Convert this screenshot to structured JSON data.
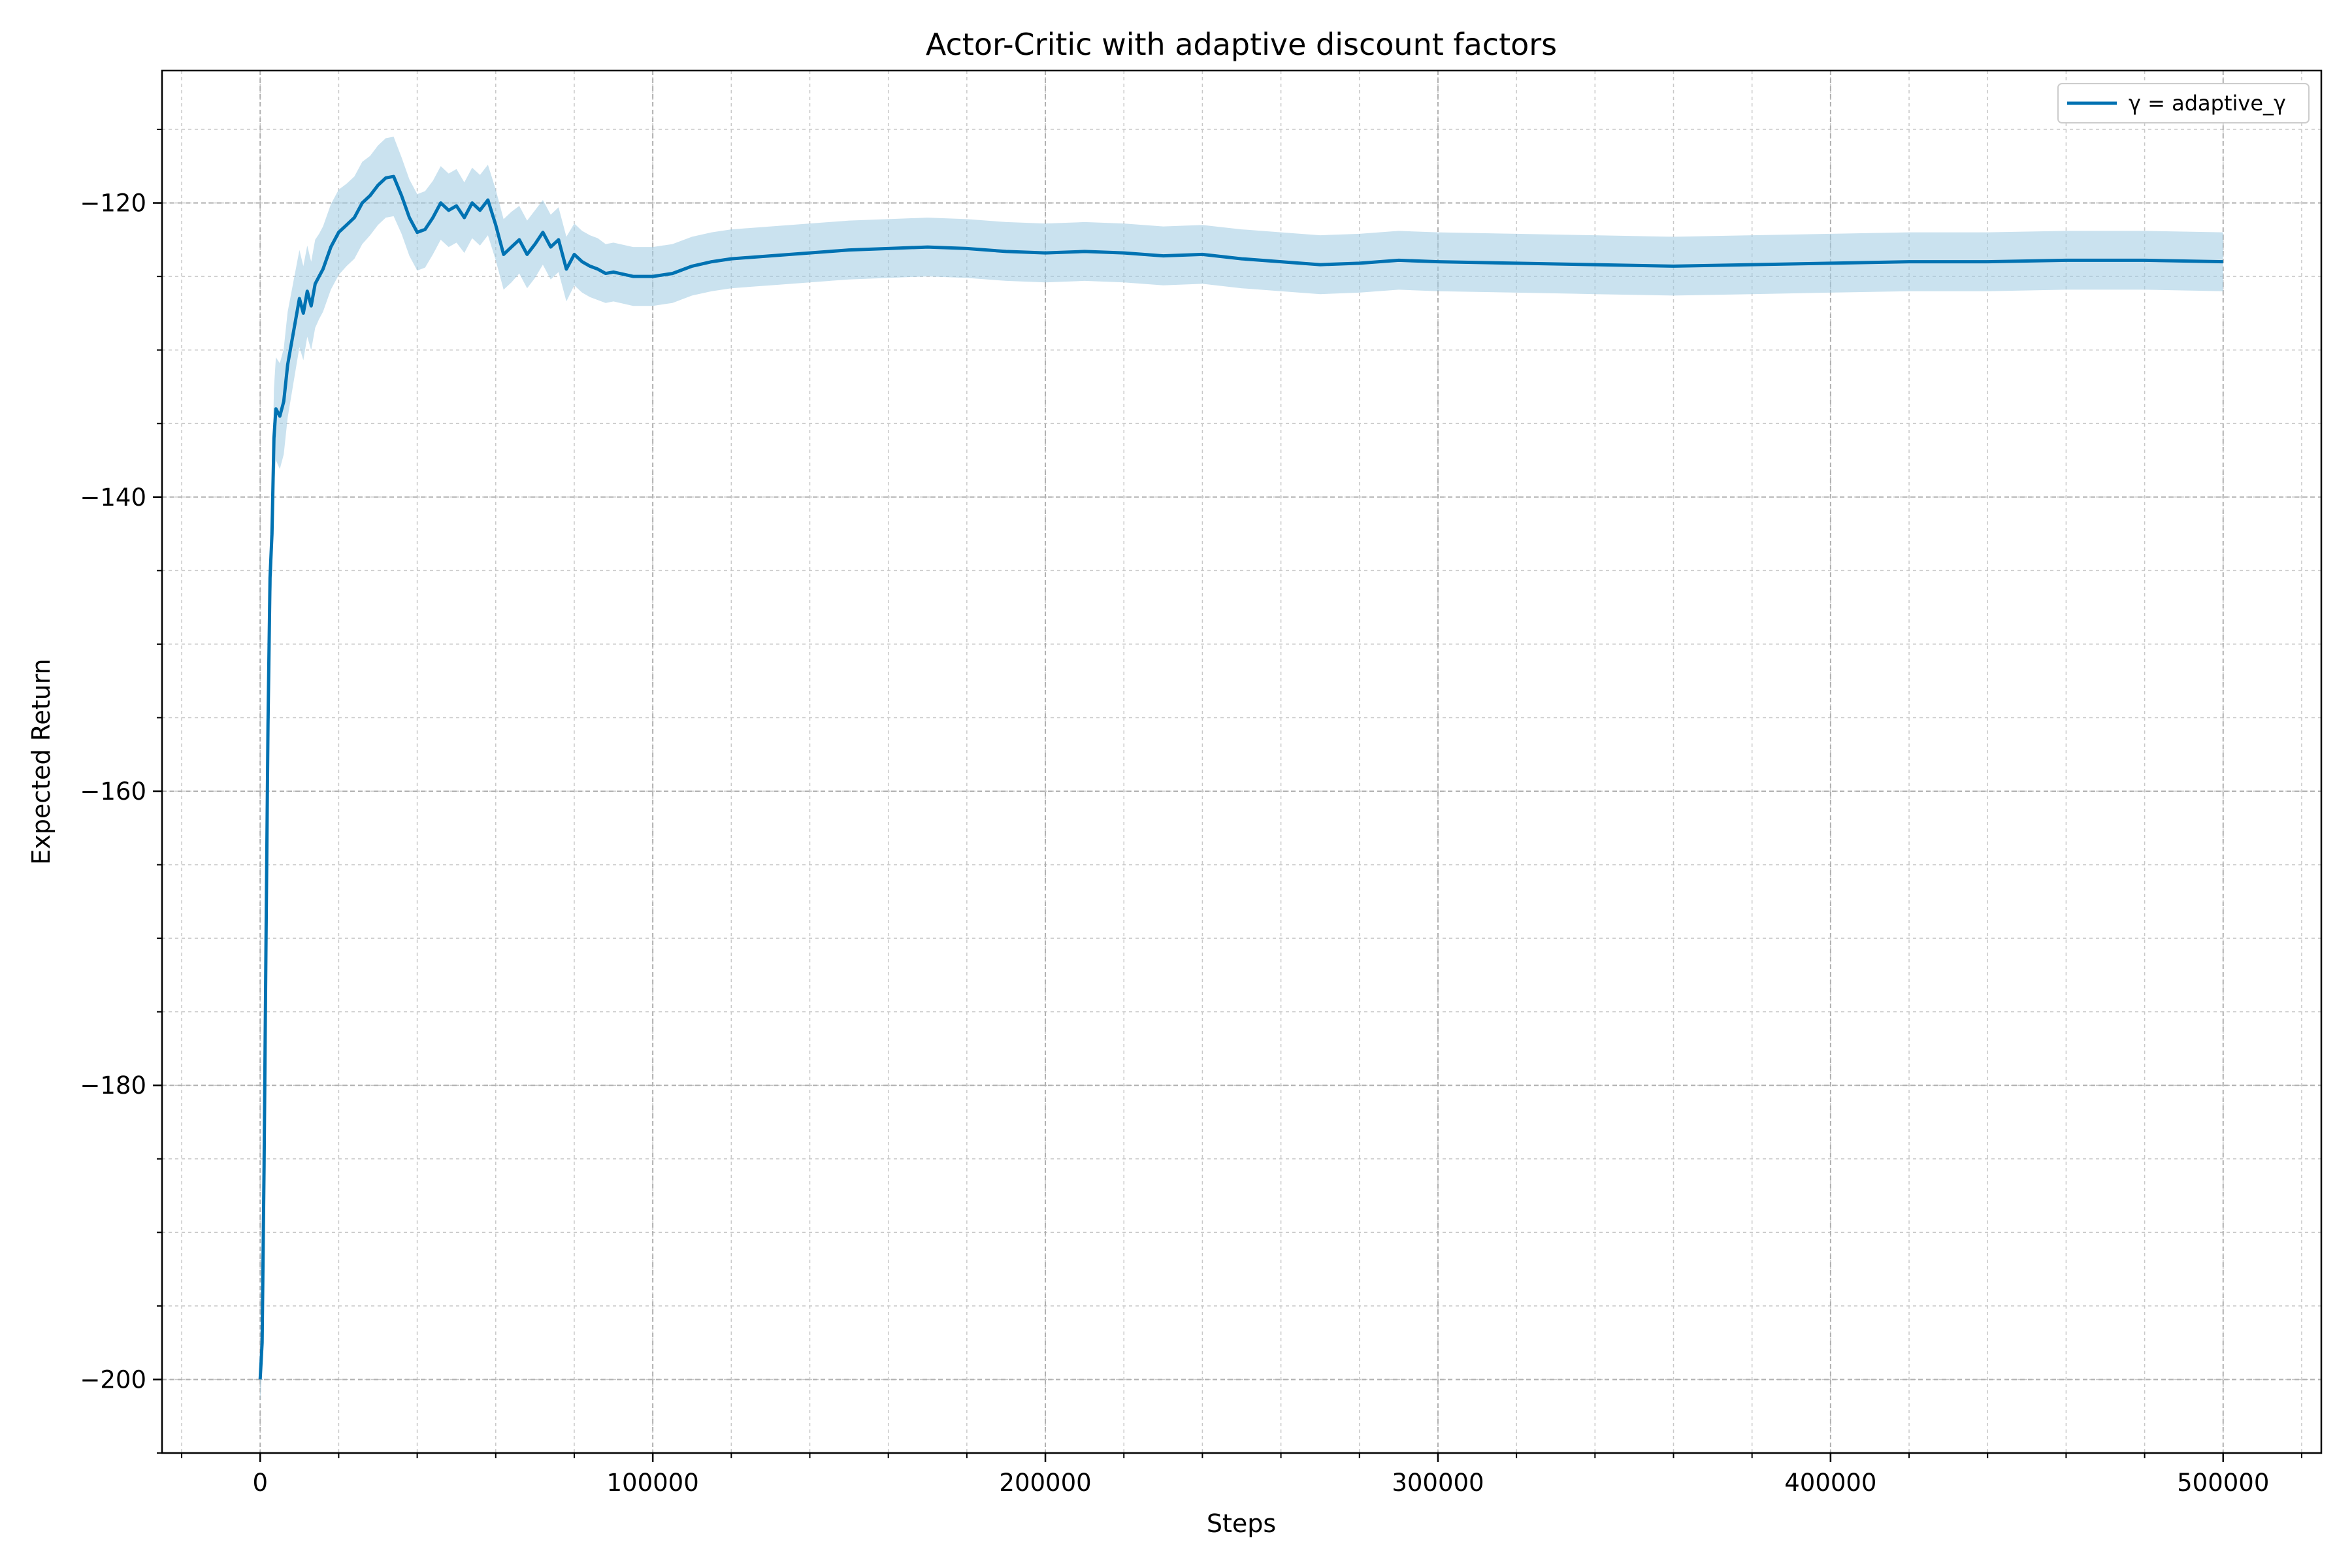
{
  "chart_data": {
    "type": "line",
    "title": "Actor-Critic with adaptive discount factors",
    "xlabel": "Steps",
    "ylabel": "Expected Return",
    "xlim": [
      -25000,
      525000
    ],
    "ylim": [
      -205,
      -111
    ],
    "xticks": [
      0,
      100000,
      200000,
      300000,
      400000,
      500000
    ],
    "yticks": [
      -200,
      -180,
      -160,
      -140,
      -120
    ],
    "x_minor_step": 20000,
    "y_minor_step": 5,
    "grid": true,
    "legend_position": "top-right",
    "colors": {
      "line": "#0072B2",
      "band": "#9ECAE1"
    },
    "series": [
      {
        "name": "γ = adaptive_γ",
        "x": [
          0,
          500,
          1000,
          1500,
          2000,
          2500,
          3000,
          3500,
          4000,
          5000,
          6000,
          7000,
          8000,
          9000,
          10000,
          11000,
          12000,
          13000,
          14000,
          15000,
          16000,
          18000,
          20000,
          22000,
          24000,
          26000,
          28000,
          30000,
          32000,
          34000,
          36000,
          38000,
          40000,
          42000,
          44000,
          46000,
          48000,
          50000,
          52000,
          54000,
          56000,
          58000,
          60000,
          62000,
          64000,
          66000,
          68000,
          70000,
          72000,
          74000,
          76000,
          78000,
          80000,
          82000,
          84000,
          86000,
          88000,
          90000,
          95000,
          100000,
          105000,
          110000,
          115000,
          120000,
          130000,
          140000,
          150000,
          160000,
          170000,
          180000,
          190000,
          200000,
          210000,
          220000,
          230000,
          240000,
          250000,
          260000,
          270000,
          280000,
          290000,
          300000,
          320000,
          340000,
          360000,
          380000,
          400000,
          420000,
          440000,
          460000,
          480000,
          500000
        ],
        "y": [
          -200,
          -197.5,
          -185.5,
          -170,
          -155.5,
          -145.5,
          -142.5,
          -136,
          -134,
          -134.5,
          -133.5,
          -131,
          -129.5,
          -128,
          -126.5,
          -127.5,
          -126,
          -127,
          -125.5,
          -125,
          -124.5,
          -123,
          -122,
          -121.5,
          -121,
          -120,
          -119.5,
          -118.8,
          -118.3,
          -118.2,
          -119.5,
          -121,
          -122,
          -121.8,
          -121,
          -120,
          -120.5,
          -120.2,
          -121,
          -120,
          -120.5,
          -119.8,
          -121.5,
          -123.5,
          -123,
          -122.5,
          -123.5,
          -122.8,
          -122,
          -123,
          -122.5,
          -124.5,
          -123.5,
          -124,
          -124.3,
          -124.5,
          -124.8,
          -124.7,
          -125,
          -125,
          -124.8,
          -124.3,
          -124,
          -123.8,
          -123.6,
          -123.4,
          -123.2,
          -123.1,
          -123,
          -123.1,
          -123.3,
          -123.4,
          -123.3,
          -123.4,
          -123.6,
          -123.5,
          -123.8,
          -124,
          -124.2,
          -124.1,
          -123.9,
          -124,
          -124.1,
          -124.2,
          -124.3,
          -124.2,
          -124.1,
          -124,
          -124,
          -123.9,
          -123.9,
          -124
        ],
        "band": [
          1.6,
          1.8,
          2.2,
          2.5,
          2.8,
          3,
          3.2,
          3.4,
          3.5,
          3.6,
          3.6,
          3.6,
          3.5,
          3.4,
          3.3,
          3.2,
          3.1,
          3,
          3,
          2.9,
          2.9,
          2.9,
          2.9,
          2.8,
          2.8,
          2.8,
          2.7,
          2.7,
          2.7,
          2.7,
          2.6,
          2.6,
          2.6,
          2.6,
          2.5,
          2.5,
          2.5,
          2.5,
          2.4,
          2.4,
          2.4,
          2.4,
          2.4,
          2.4,
          2.4,
          2.3,
          2.3,
          2.3,
          2.2,
          2.2,
          2.2,
          2.2,
          2.1,
          2.1,
          2.1,
          2.1,
          2,
          2,
          2,
          2,
          2,
          2,
          2,
          2,
          2,
          2,
          2,
          2,
          2,
          2,
          2,
          2,
          2,
          2,
          2,
          2,
          2,
          2,
          2,
          2,
          2,
          2,
          2,
          2,
          2,
          2,
          2,
          2,
          2,
          2,
          2,
          2
        ]
      }
    ]
  }
}
